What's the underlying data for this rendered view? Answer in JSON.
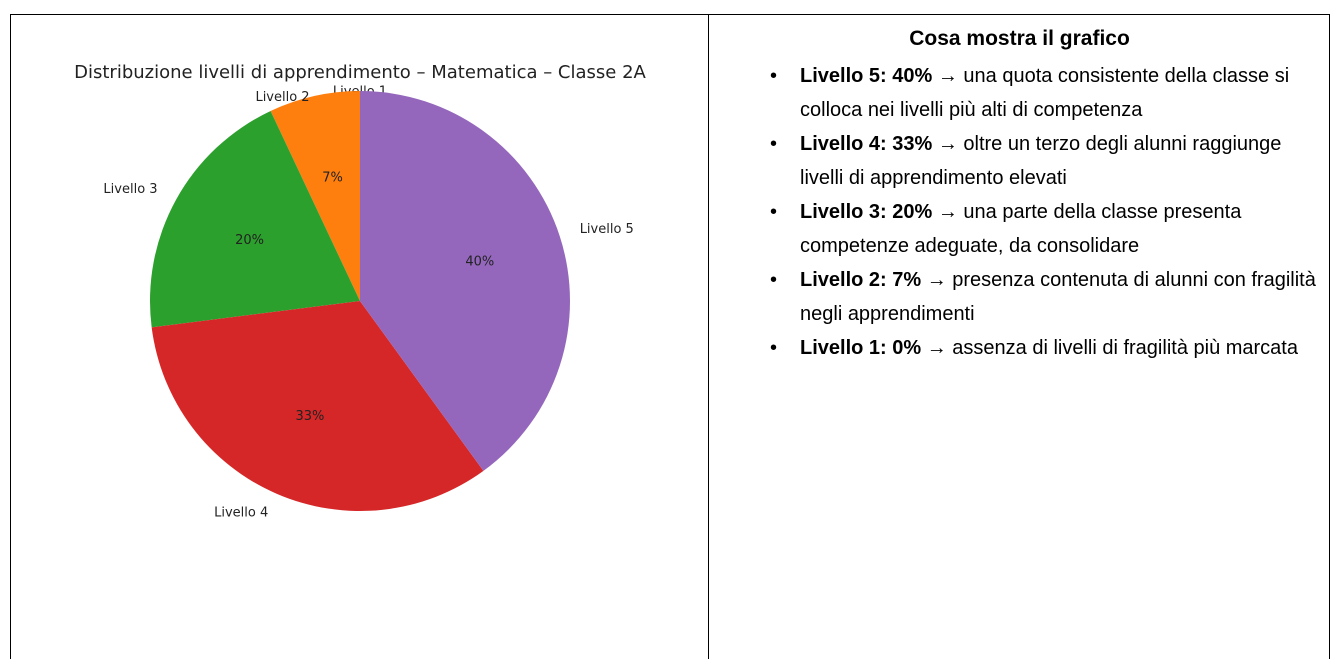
{
  "chart_data": {
    "type": "pie",
    "title": "Distribuzione livelli di apprendimento – Matematica – Classe 2A",
    "categories": [
      "Livello 1",
      "Livello 2",
      "Livello 3",
      "Livello 4",
      "Livello 5"
    ],
    "values": [
      0,
      7,
      20,
      33,
      40
    ],
    "value_labels": [
      "0%",
      "7%",
      "20%",
      "33%",
      "40%"
    ],
    "colors": [
      "#1f77b4",
      "#ff7f0e",
      "#2ca02c",
      "#d62728",
      "#9467bd"
    ]
  },
  "notes": {
    "heading": "Cosa mostra il grafico",
    "items": [
      {
        "label": "Livello 5: 40%",
        "text": "→ una quota consistente della classe si colloca nei livelli più alti di competenza"
      },
      {
        "label": "Livello 4: 33%",
        "text": "→ oltre un terzo degli alunni raggiunge livelli di apprendimento elevati"
      },
      {
        "label": "Livello 3: 20%",
        "text": "→ una parte della classe presenta competenze adeguate, da consolidare"
      },
      {
        "label": "Livello 2: 7%",
        "text": "→ presenza contenuta di alunni con fragilità negli apprendimenti"
      },
      {
        "label": "Livello 1: 0%",
        "text": "→ assenza di livelli di fragilità più marcata"
      }
    ]
  }
}
